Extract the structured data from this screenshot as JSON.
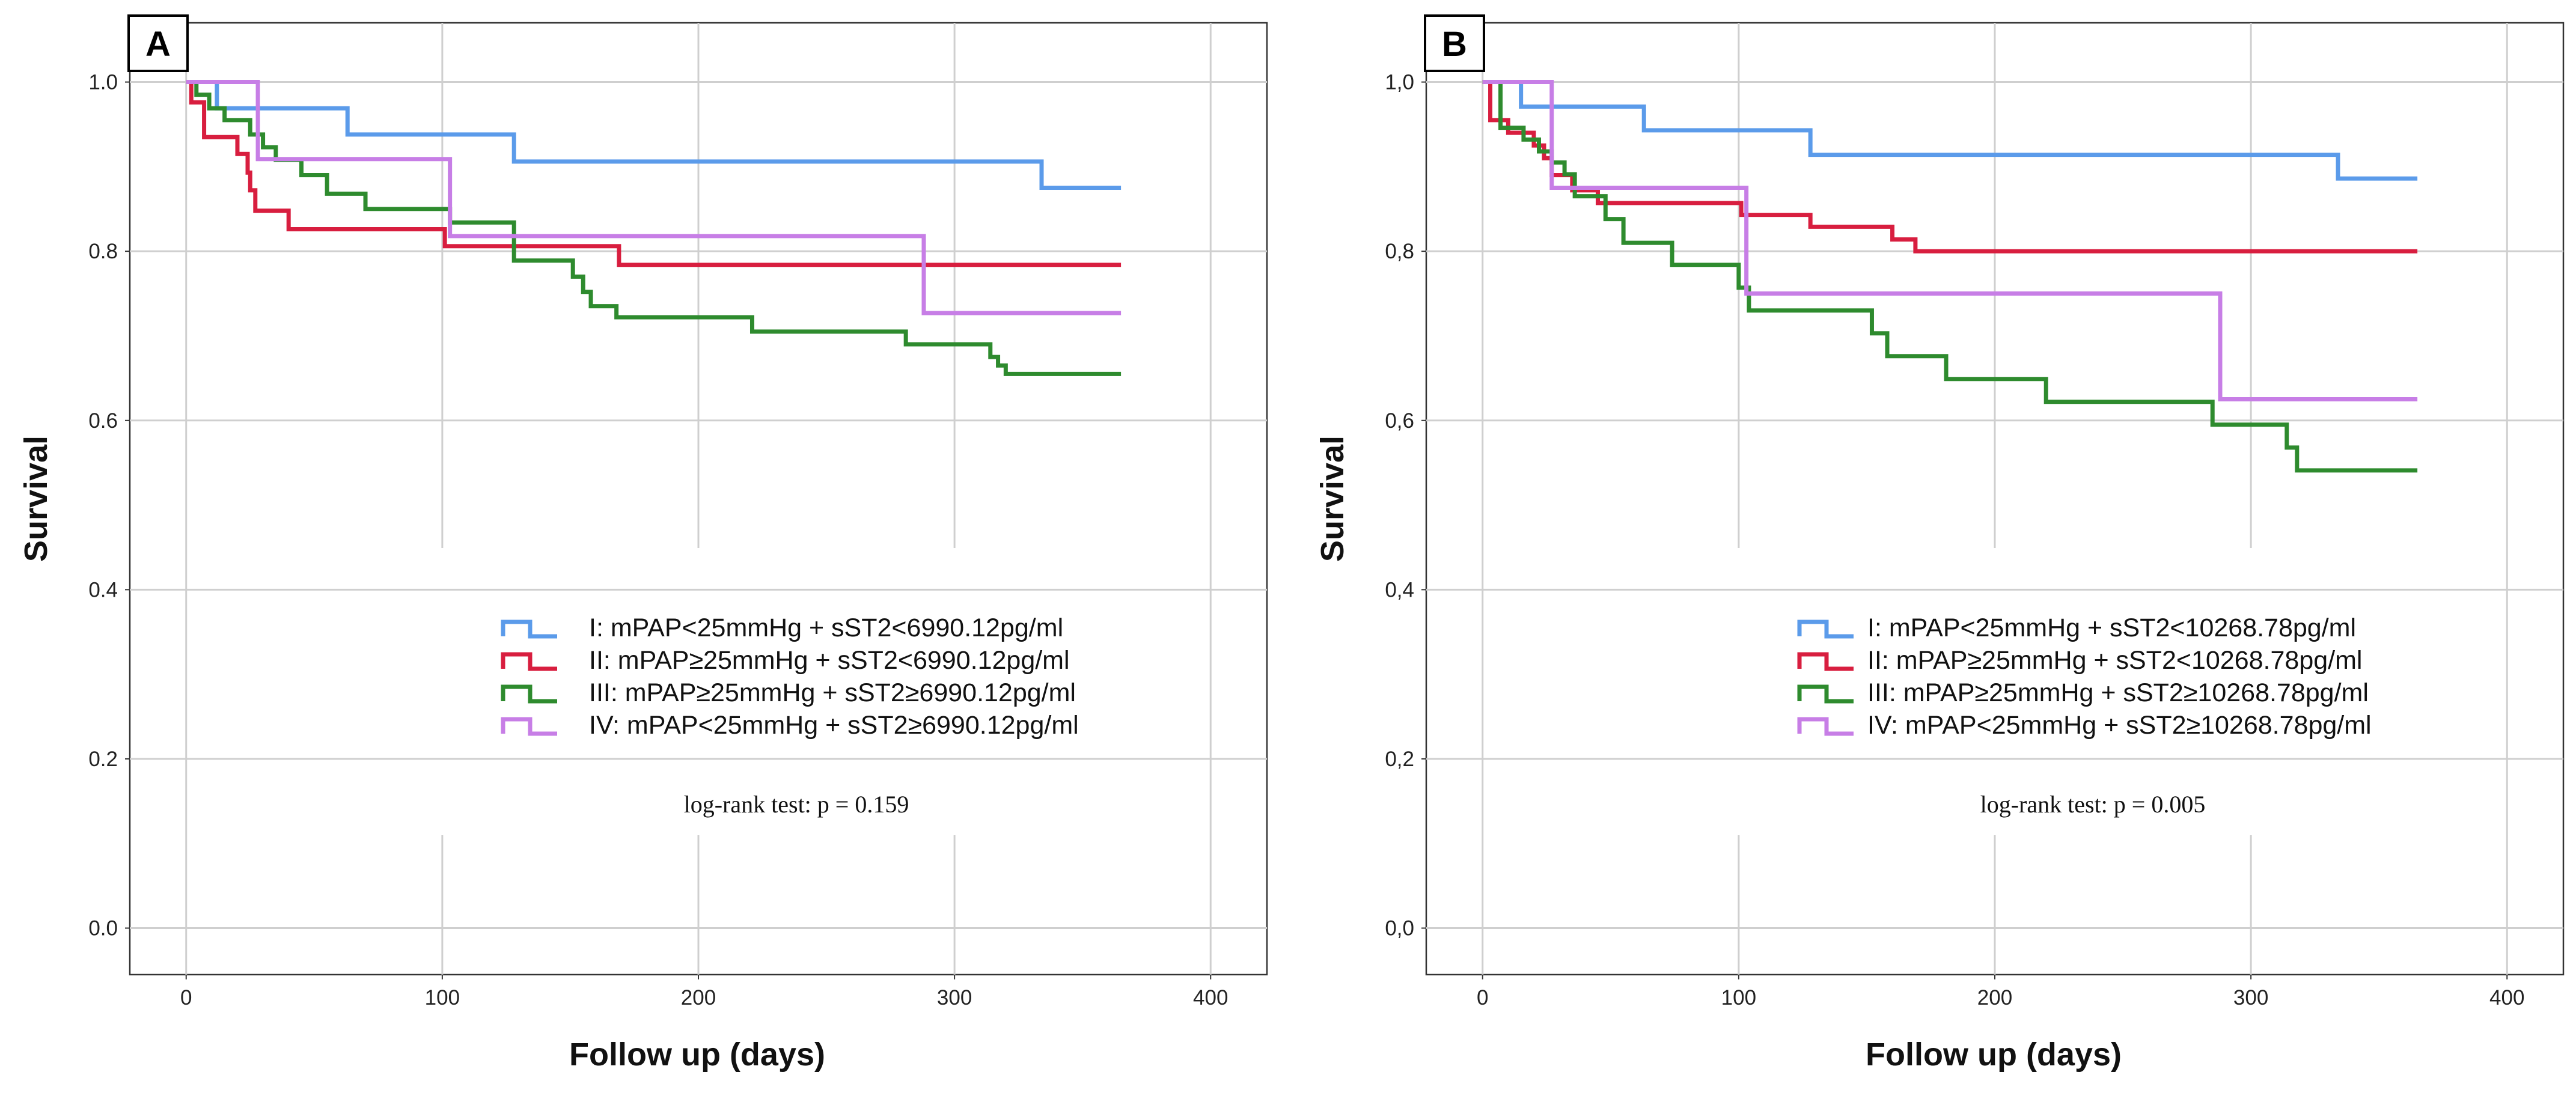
{
  "chart_data": [
    {
      "type": "line",
      "step": "survival",
      "panel_label": "A",
      "xlabel": "Follow up (days)",
      "ylabel": "Survival",
      "xlim": [
        -22,
        422
      ],
      "ylim": [
        -0.055,
        1.07
      ],
      "x_ticks": [
        0,
        100,
        200,
        300,
        400
      ],
      "y_ticks": [
        0.0,
        0.2,
        0.4,
        0.6,
        0.8,
        1.0
      ],
      "x_tick_labels": [
        "0",
        "100",
        "200",
        "300",
        "400"
      ],
      "y_tick_labels": [
        "0.0",
        "0.2",
        "0.4",
        "0.6",
        "0.8",
        "1.0"
      ],
      "grid": true,
      "legend_position": "center-right",
      "annotation": "log-rank test: p = 0.159",
      "series": [
        {
          "name": "I: mPAP<25mmHg + sST2<6990.12pg/ml",
          "color": "#5b9bea",
          "x": [
            0,
            12,
            63,
            128,
            334,
            365
          ],
          "y": [
            1.0,
            0.969,
            0.938,
            0.906,
            0.875,
            0.875
          ]
        },
        {
          "name": "II: mPAP≥25mmHg + sST2<6990.12pg/ml",
          "color": "#d81e3f",
          "x": [
            0,
            2,
            7,
            20,
            24,
            25,
            27,
            40,
            101,
            169,
            365
          ],
          "y": [
            1.0,
            0.976,
            0.935,
            0.915,
            0.893,
            0.872,
            0.848,
            0.826,
            0.806,
            0.784,
            0.784
          ]
        },
        {
          "name": "III: mPAP≥25mmHg + sST2≥6990.12pg/ml",
          "color": "#2e8b2e",
          "x": [
            0,
            4,
            9,
            15,
            25,
            30,
            35,
            45,
            55,
            70,
            103,
            128,
            151,
            155,
            158,
            168,
            182,
            221,
            281,
            314,
            317,
            320,
            365
          ],
          "y": [
            1.0,
            0.985,
            0.969,
            0.955,
            0.938,
            0.923,
            0.908,
            0.89,
            0.868,
            0.85,
            0.834,
            0.789,
            0.77,
            0.752,
            0.735,
            0.722,
            0.722,
            0.705,
            0.69,
            0.675,
            0.665,
            0.655,
            0.655
          ]
        },
        {
          "name": "IV: mPAP<25mmHg + sST2≥6990.12pg/ml",
          "color": "#c77ee6",
          "x": [
            0,
            28,
            103,
            288,
            365
          ],
          "y": [
            1.0,
            0.909,
            0.818,
            0.727,
            0.727
          ]
        }
      ]
    },
    {
      "type": "line",
      "step": "survival",
      "panel_label": "B",
      "xlabel": "Follow up (days)",
      "ylabel": "Survival",
      "xlim": [
        -22,
        422
      ],
      "ylim": [
        -0.055,
        1.07
      ],
      "x_ticks": [
        0,
        100,
        200,
        300,
        400
      ],
      "y_ticks": [
        0.0,
        0.2,
        0.4,
        0.6,
        0.8,
        1.0
      ],
      "x_tick_labels": [
        "0",
        "100",
        "200",
        "300",
        "400"
      ],
      "y_tick_labels": [
        "0,0",
        "0,2",
        "0,4",
        "0,6",
        "0,8",
        "1,0"
      ],
      "grid": true,
      "legend_position": "center-right",
      "annotation": "log-rank test: p = 0.005",
      "series": [
        {
          "name": "I: mPAP<25mmHg + sST2<10268.78pg/ml",
          "color": "#5b9bea",
          "x": [
            0,
            15,
            63,
            128,
            334,
            365
          ],
          "y": [
            1.0,
            0.971,
            0.943,
            0.914,
            0.886,
            0.886
          ]
        },
        {
          "name": "II: mPAP≥25mmHg + sST2<10268.78pg/ml",
          "color": "#d81e3f",
          "x": [
            0,
            3,
            10,
            20,
            24,
            27,
            35,
            45,
            101,
            128,
            160,
            169,
            365
          ],
          "y": [
            1.0,
            0.955,
            0.94,
            0.925,
            0.91,
            0.89,
            0.872,
            0.857,
            0.843,
            0.829,
            0.814,
            0.8,
            0.8
          ]
        },
        {
          "name": "III: mPAP≥25mmHg + sST2≥10268.78pg/ml",
          "color": "#2e8b2e",
          "x": [
            0,
            7,
            16,
            22,
            27,
            32,
            36,
            48,
            55,
            74,
            100,
            104,
            152,
            158,
            181,
            220,
            285,
            306,
            314,
            318,
            365
          ],
          "y": [
            1.0,
            0.946,
            0.932,
            0.918,
            0.905,
            0.891,
            0.865,
            0.838,
            0.81,
            0.784,
            0.757,
            0.73,
            0.703,
            0.676,
            0.649,
            0.622,
            0.595,
            0.595,
            0.568,
            0.541,
            0.541
          ]
        },
        {
          "name": "IV: mPAP<25mmHg + sST2≥10268.78pg/ml",
          "color": "#c77ee6",
          "x": [
            0,
            27,
            103,
            288,
            365
          ],
          "y": [
            1.0,
            0.875,
            0.75,
            0.625,
            0.625
          ]
        }
      ]
    }
  ]
}
